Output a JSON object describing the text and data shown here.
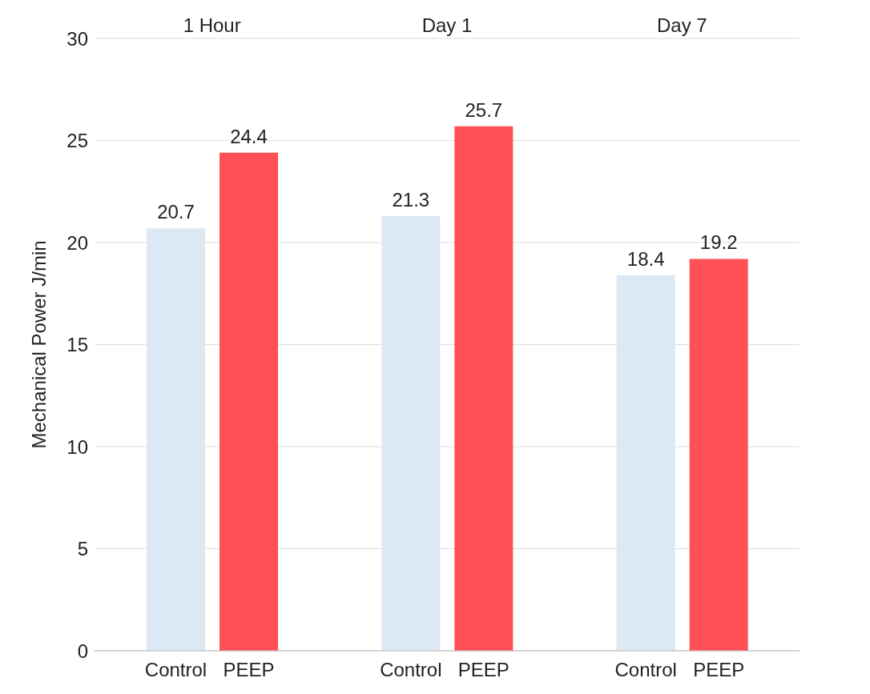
{
  "chart_data": {
    "type": "bar",
    "ylabel": "Mechanical Power J/min",
    "categories": [
      "1 Hour",
      "Day 1",
      "Day 7"
    ],
    "series": [
      {
        "name": "Control",
        "color": "#dce8f4",
        "values": [
          20.7,
          21.3,
          18.4
        ]
      },
      {
        "name": "PEEP",
        "color": "#ff5055",
        "values": [
          24.4,
          25.7,
          19.2
        ]
      }
    ],
    "ylim": [
      0,
      30
    ],
    "yticks": [
      0,
      5,
      10,
      15,
      20,
      25,
      30
    ],
    "grid": "y",
    "legend": false,
    "data_labels": true
  }
}
